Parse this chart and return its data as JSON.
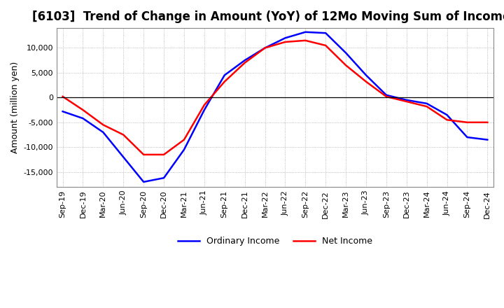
{
  "title": "[6103]  Trend of Change in Amount (YoY) of 12Mo Moving Sum of Incomes",
  "ylabel": "Amount (million yen)",
  "ylim": [
    -18000,
    14000
  ],
  "yticks": [
    -15000,
    -10000,
    -5000,
    0,
    5000,
    10000
  ],
  "legend_labels": [
    "Ordinary Income",
    "Net Income"
  ],
  "line_colors": [
    "#0000ff",
    "#ff0000"
  ],
  "x_labels": [
    "Sep-19",
    "Dec-19",
    "Mar-20",
    "Jun-20",
    "Sep-20",
    "Dec-20",
    "Mar-21",
    "Jun-21",
    "Sep-21",
    "Dec-21",
    "Mar-22",
    "Jun-22",
    "Sep-22",
    "Dec-22",
    "Mar-23",
    "Jun-23",
    "Sep-23",
    "Dec-23",
    "Mar-24",
    "Jun-24",
    "Sep-24",
    "Dec-24"
  ],
  "ordinary_income": [
    -2800,
    -4200,
    -7000,
    -12000,
    -17000,
    -16200,
    -10500,
    -2500,
    4500,
    7500,
    10000,
    12000,
    13200,
    13000,
    9000,
    4500,
    500,
    -500,
    -1200,
    -3500,
    -8000,
    -8500
  ],
  "net_income": [
    200,
    -2500,
    -5500,
    -7500,
    -11500,
    -11500,
    -8500,
    -1500,
    3200,
    7000,
    10000,
    11200,
    11500,
    10500,
    6500,
    3200,
    200,
    -800,
    -1800,
    -4500,
    -5000,
    -5000
  ],
  "background_color": "#ffffff",
  "grid_color": "#aaaaaa",
  "title_fontsize": 12,
  "label_fontsize": 9,
  "tick_fontsize": 8
}
